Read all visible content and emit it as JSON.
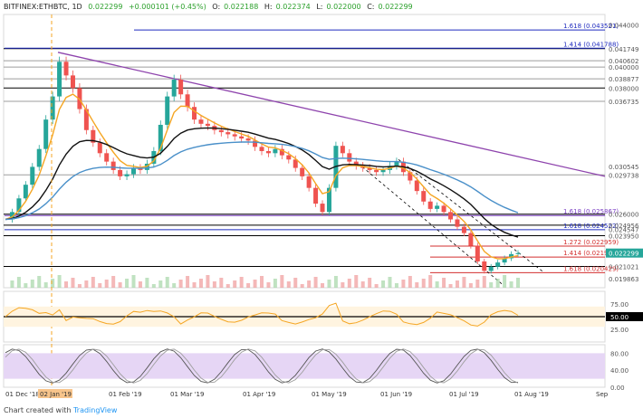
{
  "header": {
    "symbol": "BITFINEX:ETHBTC, 1D",
    "last": "0.022299",
    "change": "+0.000101 (+0.45%)",
    "open_label": "O:",
    "open": "0.022188",
    "high_label": "H:",
    "high": "0.022374",
    "low_label": "L:",
    "low": "0.022000",
    "close_label": "C:",
    "close": "0.022299"
  },
  "footer": {
    "prefix": "Chart created with",
    "brand": "TradingView"
  },
  "colors": {
    "price_axis": "#555555",
    "highlight_tag": "#f7c48b",
    "up": "#26a69a",
    "down": "#ef5350",
    "ema_orange": "#f5a623",
    "ema_black": "#111111",
    "ema_blue": "#4a90c9",
    "fib_purple": "#7b3fc4",
    "fib_blue": "#1f2bbf",
    "fib_red": "#d32f2f",
    "trend_purple": "#8e44ad"
  },
  "chart_data": {
    "type": "candlestick",
    "price_axis_ticks": [
      "0.044000",
      "0.041749",
      "0.040602",
      "0.040000",
      "0.038877",
      "0.038000",
      "0.036735",
      "0.030545",
      "0.029738",
      "0.026000",
      "0.024956",
      "0.024547",
      "0.023950",
      "0.022539",
      "0.022299",
      "0.021021",
      "0.019863"
    ],
    "price_axis_lines": [
      {
        "value": "0.041749",
        "color": "#000000"
      },
      {
        "value": "0.040602",
        "color": "#9e9e9e"
      },
      {
        "value": "0.040000",
        "color": "#9e9e9e"
      },
      {
        "value": "0.038877",
        "color": "#9e9e9e"
      },
      {
        "value": "0.038000",
        "color": "#000000"
      },
      {
        "value": "0.036735",
        "color": "#9e9e9e"
      },
      {
        "value": "0.029738",
        "color": "#9e9e9e"
      },
      {
        "value": "0.026000",
        "color": "#000000"
      },
      {
        "value": "0.024956",
        "color": "#000000"
      },
      {
        "value": "0.023950",
        "color": "#000000"
      },
      {
        "value": "0.021021",
        "color": "#000000"
      }
    ],
    "fib_levels": [
      {
        "label": "1.618 (0.043521)",
        "color": "#1f2bbf"
      },
      {
        "label": "1.414 (0.041788)",
        "color": "#1f2bbf"
      },
      {
        "label": "1.618 (0.025867)",
        "color": "#7b3fc4"
      },
      {
        "label": "1.618 (0.024522)",
        "color": "#1f2bbf"
      },
      {
        "label": "1.272 (0.022959)",
        "color": "#d32f2f"
      },
      {
        "label": "1.414 (0.021921)",
        "color": "#d32f2f"
      },
      {
        "label": "1.618 (0.020429)",
        "color": "#d32f2f"
      }
    ],
    "x_labels": [
      "01 Dec '18",
      "02 Jan '19",
      "01 Feb '19",
      "01 Mar '19",
      "01 Apr '19",
      "01 May '19",
      "01 Jun '19",
      "01 Jul '19",
      "01 Aug '19",
      "Sep"
    ],
    "highlight_x_label": "02 Jan '19",
    "rsi": {
      "ticks": [
        "75.00",
        "50.00",
        "25.00"
      ],
      "current": "50.00"
    },
    "stoch": {
      "ticks": [
        "80.00",
        "40.00",
        "0.00"
      ]
    },
    "close_path": [
      0.0255,
      0.0262,
      0.0275,
      0.0288,
      0.0305,
      0.0322,
      0.035,
      0.0372,
      0.0405,
      0.0392,
      0.038,
      0.036,
      0.034,
      0.0328,
      0.0318,
      0.031,
      0.0302,
      0.0296,
      0.0298,
      0.0304,
      0.0302,
      0.0308,
      0.032,
      0.0345,
      0.0372,
      0.0388,
      0.0374,
      0.0362,
      0.035,
      0.0346,
      0.0344,
      0.034,
      0.0338,
      0.0336,
      0.0334,
      0.0332,
      0.033,
      0.0324,
      0.032,
      0.0318,
      0.0322,
      0.0316,
      0.0312,
      0.0304,
      0.0296,
      0.0285,
      0.027,
      0.0262,
      0.0285,
      0.0325,
      0.0318,
      0.031,
      0.0306,
      0.0304,
      0.0302,
      0.03,
      0.0302,
      0.0306,
      0.031,
      0.03,
      0.0292,
      0.0282,
      0.0272,
      0.0265,
      0.0268,
      0.0262,
      0.0255,
      0.0248,
      0.0242,
      0.023,
      0.0215,
      0.0206,
      0.021,
      0.0214,
      0.0218,
      0.0222,
      0.0223
    ]
  }
}
